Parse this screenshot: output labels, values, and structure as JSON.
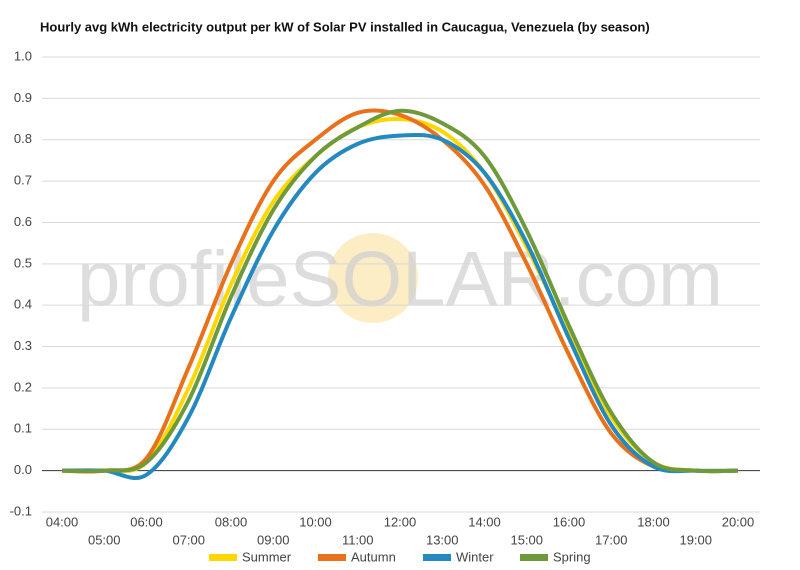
{
  "chart_data": {
    "type": "line",
    "title": "Hourly avg kWh electricity output per kW of Solar PV installed in Caucagua, Venezuela (by season)",
    "watermark": "profileSOLAR.com",
    "categories": [
      "04:00",
      "05:00",
      "06:00",
      "07:00",
      "08:00",
      "09:00",
      "10:00",
      "11:00",
      "12:00",
      "13:00",
      "14:00",
      "15:00",
      "16:00",
      "17:00",
      "18:00",
      "19:00",
      "20:00"
    ],
    "series": [
      {
        "name": "Summer",
        "color": "#ffd700",
        "values": [
          0,
          0,
          0.02,
          0.2,
          0.45,
          0.65,
          0.76,
          0.83,
          0.85,
          0.82,
          0.72,
          0.54,
          0.33,
          0.13,
          0.02,
          0,
          0
        ]
      },
      {
        "name": "Autumn",
        "color": "#e8711a",
        "values": [
          0,
          0,
          0.03,
          0.25,
          0.5,
          0.7,
          0.8,
          0.865,
          0.86,
          0.8,
          0.69,
          0.5,
          0.28,
          0.09,
          0.01,
          0,
          0
        ]
      },
      {
        "name": "Winter",
        "color": "#2389c0",
        "values": [
          0,
          0,
          -0.01,
          0.13,
          0.37,
          0.58,
          0.72,
          0.79,
          0.81,
          0.8,
          0.72,
          0.55,
          0.32,
          0.11,
          0.01,
          0,
          0
        ]
      },
      {
        "name": "Spring",
        "color": "#6f9a3c",
        "values": [
          0,
          0,
          0.02,
          0.17,
          0.42,
          0.63,
          0.76,
          0.83,
          0.87,
          0.84,
          0.76,
          0.58,
          0.35,
          0.14,
          0.02,
          0,
          0
        ]
      }
    ],
    "ylim": [
      -0.1,
      1.0
    ],
    "yticks": [
      -0.1,
      {
        "value": 0,
        "label": "0.0"
      },
      0.1,
      0.2,
      0.3,
      0.4,
      0.5,
      0.6,
      0.7,
      0.8,
      0.9,
      {
        "value": 1,
        "label": "1.0"
      }
    ],
    "grid": true,
    "legend": "bottom"
  }
}
